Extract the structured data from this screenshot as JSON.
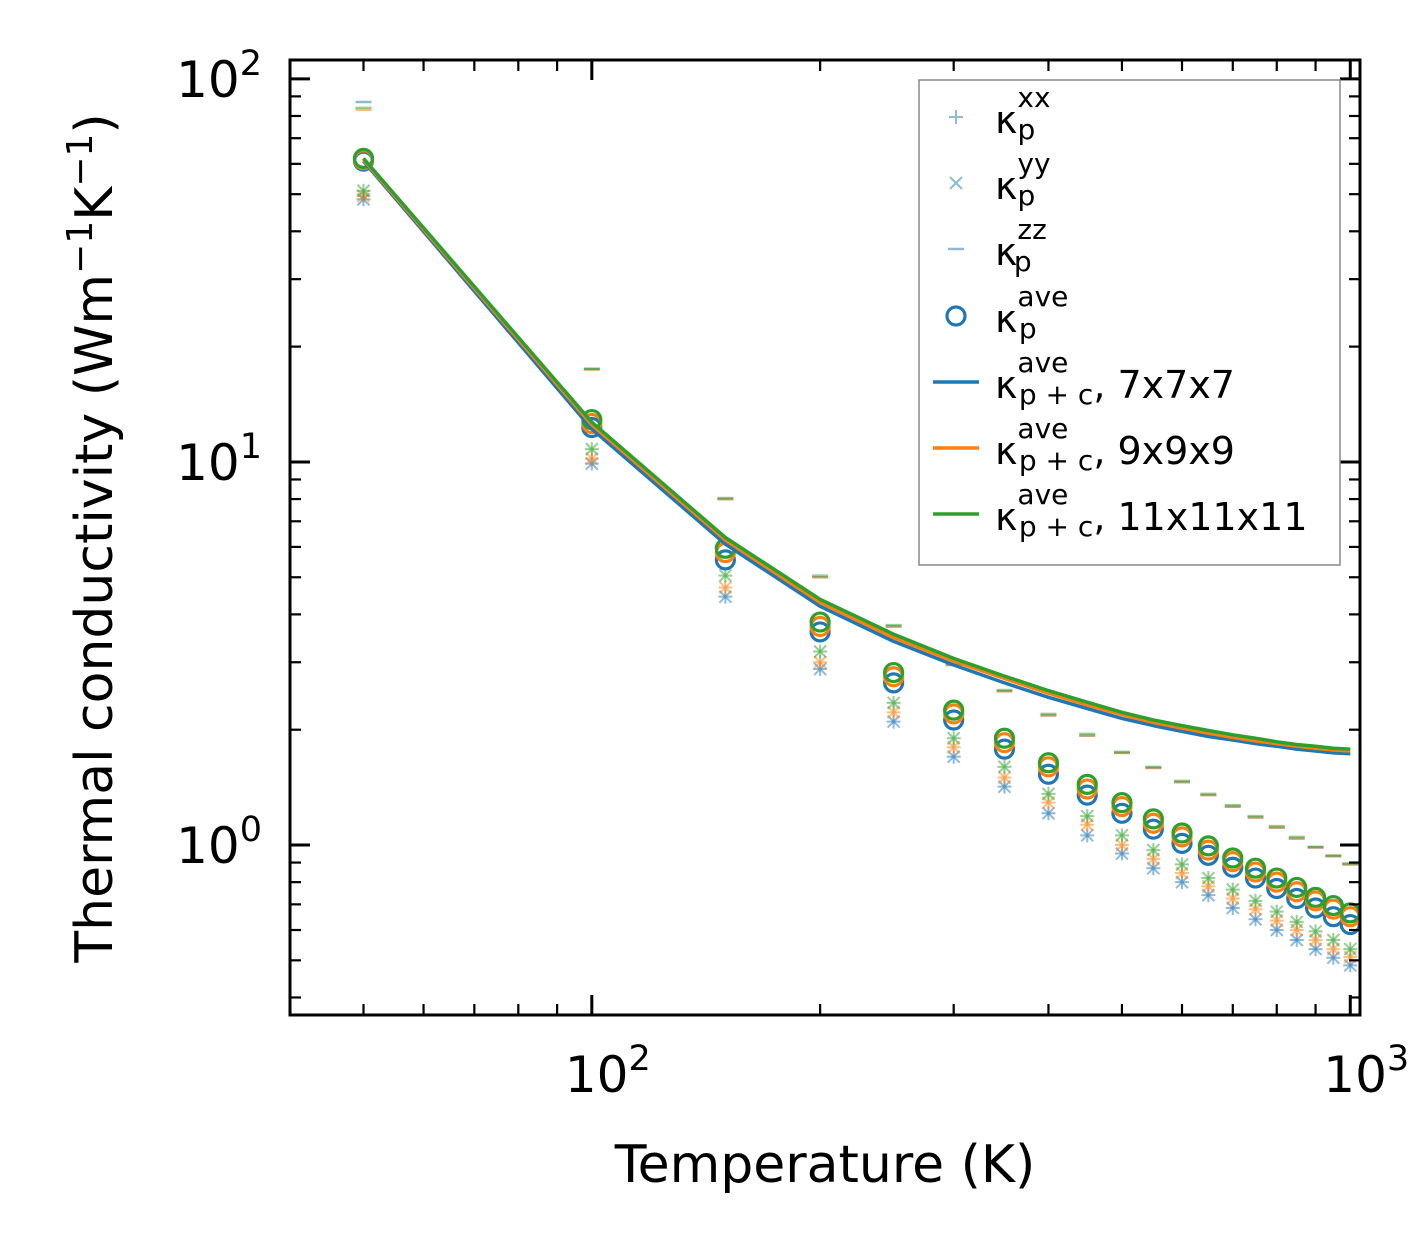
{
  "chart_data": {
    "type": "scatter",
    "xscale": "log",
    "yscale": "log",
    "xlabel": "Temperature (K)",
    "ylabel": "Thermal conductivity (Wm",
    "ylabel_parts": [
      "Thermal conductivity (Wm",
      "−1",
      "K",
      "−1",
      ")"
    ],
    "xlim": [
      40,
      1030
    ],
    "ylim": [
      0.36,
      112
    ],
    "xticks": [
      {
        "base": "10",
        "exp": "2",
        "value": 100
      },
      {
        "base": "10",
        "exp": "3",
        "value": 1000
      }
    ],
    "yticks": [
      {
        "base": "10",
        "exp": "0",
        "value": 1
      },
      {
        "base": "10",
        "exp": "1",
        "value": 10
      },
      {
        "base": "10",
        "exp": "2",
        "value": 100
      }
    ],
    "x": [
      50,
      100,
      150,
      200,
      250,
      300,
      350,
      400,
      450,
      500,
      550,
      600,
      650,
      700,
      750,
      800,
      850,
      900,
      950,
      1000
    ],
    "colors": {
      "blue": "#1f77b4",
      "orange": "#ff7f0e",
      "green": "#2ca02c"
    },
    "legend": {
      "position": "top-right",
      "entries": [
        {
          "label": "κ",
          "sub": "p",
          "sup": "xx",
          "tail": "",
          "marker": "plus"
        },
        {
          "label": "κ",
          "sub": "p",
          "sup": "yy",
          "tail": "",
          "marker": "x"
        },
        {
          "label": "κ",
          "sub": "p",
          "sup": "zz",
          "tail": "",
          "marker": "dash"
        },
        {
          "label": "κ",
          "sub": "p",
          "sup": "ave",
          "tail": "",
          "marker": "circle"
        },
        {
          "label": "κ",
          "sub": "p + c",
          "sup": "ave",
          "tail": ", 7x7x7",
          "marker": "line-blue"
        },
        {
          "label": "κ",
          "sub": "p + c",
          "sup": "ave",
          "tail": ", 9x9x9",
          "marker": "line-orange"
        },
        {
          "label": "κ",
          "sub": "p + c",
          "sup": "ave",
          "tail": ", 11x11x11",
          "marker": "line-green"
        }
      ]
    },
    "series": [
      {
        "name": "kp_xx 7x7x7",
        "kind": "plus",
        "color": "blue",
        "values": [
          48.5,
          9.9,
          4.45,
          2.88,
          2.1,
          1.7,
          1.42,
          1.21,
          1.06,
          0.95,
          0.87,
          0.8,
          0.74,
          0.685,
          0.64,
          0.6,
          0.565,
          0.535,
          0.508,
          0.485
        ]
      },
      {
        "name": "kp_yy 7x7x7",
        "kind": "x",
        "color": "blue",
        "values": [
          48.5,
          9.9,
          4.45,
          2.88,
          2.1,
          1.7,
          1.42,
          1.21,
          1.06,
          0.95,
          0.87,
          0.8,
          0.74,
          0.685,
          0.64,
          0.6,
          0.565,
          0.535,
          0.508,
          0.485
        ]
      },
      {
        "name": "kp_zz 7x7x7",
        "kind": "dash",
        "color": "blue",
        "values": [
          87,
          17.5,
          8.0,
          5.0,
          3.72,
          2.95,
          2.52,
          2.18,
          1.93,
          1.74,
          1.59,
          1.46,
          1.35,
          1.26,
          1.18,
          1.11,
          1.04,
          0.985,
          0.935,
          0.89
        ]
      },
      {
        "name": "kp_xx 9x9x9",
        "kind": "plus",
        "color": "orange",
        "values": [
          49.5,
          10.2,
          4.7,
          3.0,
          2.22,
          1.8,
          1.5,
          1.29,
          1.13,
          1.0,
          0.92,
          0.845,
          0.78,
          0.725,
          0.68,
          0.635,
          0.6,
          0.565,
          0.535,
          0.51
        ]
      },
      {
        "name": "kp_yy 9x9x9",
        "kind": "x",
        "color": "orange",
        "values": [
          49.5,
          10.2,
          4.7,
          3.0,
          2.22,
          1.8,
          1.5,
          1.29,
          1.13,
          1.0,
          0.92,
          0.845,
          0.78,
          0.725,
          0.68,
          0.635,
          0.6,
          0.565,
          0.535,
          0.51
        ]
      },
      {
        "name": "kp_zz 9x9x9",
        "kind": "dash",
        "color": "orange",
        "values": [
          83,
          17.4,
          8.0,
          5.0,
          3.72,
          2.95,
          2.52,
          2.18,
          1.93,
          1.74,
          1.59,
          1.46,
          1.35,
          1.26,
          1.18,
          1.11,
          1.04,
          0.985,
          0.935,
          0.89
        ]
      },
      {
        "name": "kp_xx 11x11x11",
        "kind": "plus",
        "color": "green",
        "values": [
          51,
          10.8,
          5.05,
          3.2,
          2.35,
          1.9,
          1.6,
          1.36,
          1.19,
          1.06,
          0.97,
          0.89,
          0.82,
          0.765,
          0.715,
          0.67,
          0.63,
          0.595,
          0.565,
          0.535
        ]
      },
      {
        "name": "kp_yy 11x11x11",
        "kind": "x",
        "color": "green",
        "values": [
          51,
          10.8,
          5.05,
          3.2,
          2.35,
          1.9,
          1.6,
          1.36,
          1.19,
          1.06,
          0.97,
          0.89,
          0.82,
          0.765,
          0.715,
          0.67,
          0.63,
          0.595,
          0.565,
          0.535
        ]
      },
      {
        "name": "kp_zz 11x11x11",
        "kind": "dash",
        "color": "green",
        "values": [
          84,
          17.5,
          8.05,
          5.05,
          3.75,
          2.97,
          2.54,
          2.2,
          1.95,
          1.75,
          1.6,
          1.47,
          1.36,
          1.27,
          1.19,
          1.12,
          1.05,
          0.99,
          0.94,
          0.895
        ]
      },
      {
        "name": "kp_ave 7x7x7",
        "kind": "circle",
        "color": "blue",
        "values": [
          61,
          12.3,
          5.55,
          3.6,
          2.65,
          2.12,
          1.78,
          1.53,
          1.35,
          1.21,
          1.1,
          1.01,
          0.94,
          0.875,
          0.82,
          0.77,
          0.725,
          0.685,
          0.65,
          0.62
        ]
      },
      {
        "name": "kp_ave 9x9x9",
        "kind": "circle",
        "color": "orange",
        "values": [
          61.5,
          12.6,
          5.8,
          3.72,
          2.75,
          2.2,
          1.85,
          1.6,
          1.4,
          1.26,
          1.14,
          1.05,
          0.97,
          0.905,
          0.85,
          0.8,
          0.755,
          0.715,
          0.68,
          0.65
        ]
      },
      {
        "name": "kp_ave 11x11x11",
        "kind": "circle",
        "color": "green",
        "values": [
          62,
          12.9,
          5.95,
          3.82,
          2.82,
          2.25,
          1.9,
          1.64,
          1.44,
          1.29,
          1.17,
          1.075,
          0.995,
          0.925,
          0.87,
          0.82,
          0.775,
          0.73,
          0.695,
          0.665
        ]
      },
      {
        "name": "kp+c ave 7x7x7",
        "kind": "line",
        "color": "blue",
        "values": [
          61,
          12.2,
          6.1,
          4.2,
          3.4,
          2.95,
          2.65,
          2.43,
          2.27,
          2.14,
          2.05,
          1.98,
          1.92,
          1.88,
          1.84,
          1.81,
          1.78,
          1.76,
          1.74,
          1.73
        ]
      },
      {
        "name": "kp+c ave 9x9x9",
        "kind": "line",
        "color": "orange",
        "values": [
          61.5,
          12.5,
          6.25,
          4.3,
          3.48,
          3.02,
          2.72,
          2.49,
          2.32,
          2.19,
          2.09,
          2.02,
          1.96,
          1.91,
          1.87,
          1.84,
          1.81,
          1.79,
          1.77,
          1.76
        ]
      },
      {
        "name": "kp+c ave 11x11x11",
        "kind": "line",
        "color": "green",
        "values": [
          62,
          12.7,
          6.35,
          4.38,
          3.55,
          3.07,
          2.76,
          2.53,
          2.36,
          2.22,
          2.12,
          2.05,
          1.99,
          1.94,
          1.9,
          1.86,
          1.83,
          1.81,
          1.79,
          1.78
        ]
      }
    ]
  }
}
